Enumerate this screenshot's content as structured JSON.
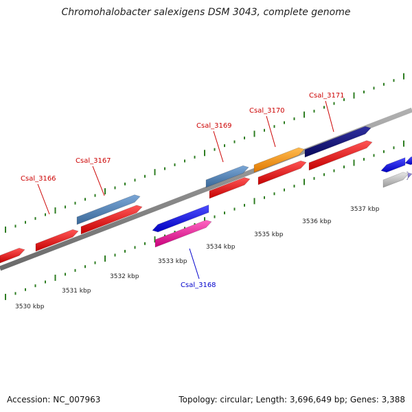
{
  "title": "Chromohalobacter salexigens DSM 3043, complete genome",
  "footer": {
    "accession": "Accession: NC_007963",
    "summary": "Topology: circular; Length: 3,696,649 bp; Genes: 3,388"
  },
  "kbp_ticks": [
    "3530 kbp",
    "3531 kbp",
    "3532 kbp",
    "3533 kbp",
    "3534 kbp",
    "3535 kbp",
    "3536 kbp",
    "3537 kbp"
  ],
  "gene_labels": [
    {
      "text": "Csal_3166",
      "color": "#cc0000"
    },
    {
      "text": "Csal_3167",
      "color": "#cc0000"
    },
    {
      "text": "Csal_3168",
      "color": "#0000cc"
    },
    {
      "text": "Csal_3169",
      "color": "#cc0000"
    },
    {
      "text": "Csal_3170",
      "color": "#cc0000"
    },
    {
      "text": "Csal_3171",
      "color": "#cc0000"
    }
  ],
  "colors": {
    "backbone": "#8a8a8a",
    "tick": "#2e7d22",
    "red": "#ee1111",
    "steelblue": "#4d82b8",
    "blue": "#1111ee",
    "magenta": "#ee2299",
    "orange": "#ff9910",
    "navy": "#10107a",
    "lavender": "#7b6fd0",
    "grey": "#b8b8b8"
  }
}
